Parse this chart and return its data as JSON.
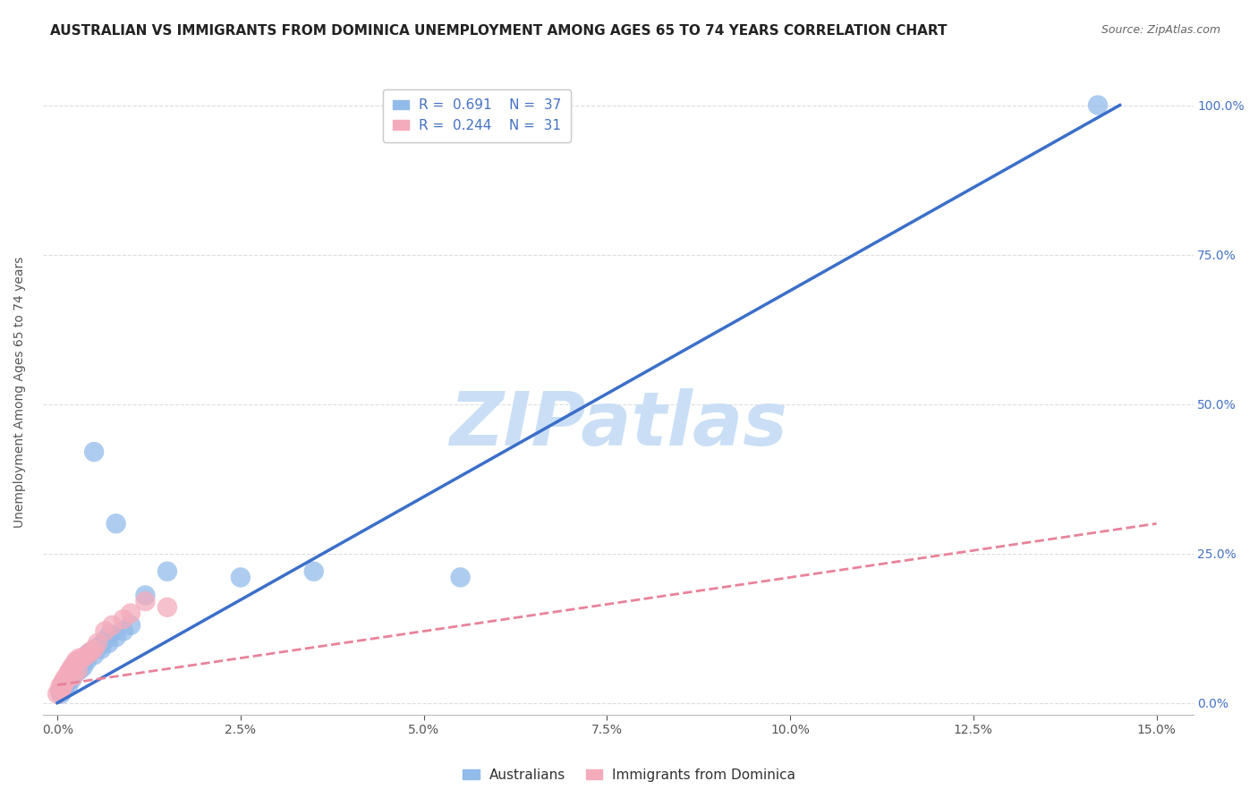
{
  "title": "AUSTRALIAN VS IMMIGRANTS FROM DOMINICA UNEMPLOYMENT AMONG AGES 65 TO 74 YEARS CORRELATION CHART",
  "source": "Source: ZipAtlas.com",
  "xlabel_ticks": [
    "0.0%",
    "2.5%",
    "5.0%",
    "7.5%",
    "10.0%",
    "12.5%",
    "15.0%"
  ],
  "xlabel_vals": [
    0.0,
    2.5,
    5.0,
    7.5,
    10.0,
    12.5,
    15.0
  ],
  "ylabel_ticks": [
    "0.0%",
    "25.0%",
    "50.0%",
    "75.0%",
    "100.0%"
  ],
  "ylabel_vals": [
    0.0,
    25.0,
    50.0,
    75.0,
    100.0
  ],
  "xlim": [
    -0.2,
    15.5
  ],
  "ylim": [
    -2,
    106
  ],
  "ylabel": "Unemployment Among Ages 65 to 74 years",
  "blue_R": 0.691,
  "blue_N": 37,
  "pink_R": 0.244,
  "pink_N": 31,
  "blue_color": "#92BBEA",
  "pink_color": "#F4ABBB",
  "trend_blue_color": "#3B6FC9",
  "trend_pink_color": "#E8839A",
  "watermark": "ZIPatlas",
  "blue_scatter_x": [
    0.5,
    0.8,
    0.1,
    0.15,
    0.2,
    0.25,
    0.05,
    0.1,
    0.3,
    0.35,
    0.4,
    0.5,
    0.6,
    0.7,
    0.8,
    0.9,
    1.0,
    0.05,
    0.12,
    0.18,
    0.22,
    0.28,
    0.45,
    0.65,
    0.08,
    0.13,
    0.17,
    0.32,
    0.42,
    0.58,
    0.72,
    1.2,
    1.5,
    2.5,
    3.5,
    5.5,
    14.2
  ],
  "blue_scatter_y": [
    42.0,
    30.0,
    2.5,
    3.0,
    4.0,
    5.0,
    2.0,
    3.5,
    5.5,
    6.0,
    7.0,
    8.0,
    9.0,
    10.0,
    11.0,
    12.0,
    13.0,
    1.5,
    3.2,
    4.5,
    5.2,
    6.5,
    8.5,
    10.5,
    2.2,
    3.8,
    4.8,
    6.8,
    8.2,
    9.5,
    11.5,
    18.0,
    22.0,
    21.0,
    22.0,
    21.0,
    100.0
  ],
  "pink_scatter_x": [
    0.0,
    0.03,
    0.06,
    0.08,
    0.1,
    0.12,
    0.15,
    0.18,
    0.2,
    0.22,
    0.25,
    0.28,
    0.3,
    0.4,
    0.5,
    0.65,
    0.9,
    1.2,
    0.04,
    0.07,
    0.11,
    0.16,
    0.21,
    0.26,
    0.35,
    0.45,
    0.55,
    0.75,
    1.0,
    1.5,
    0.09
  ],
  "pink_scatter_y": [
    1.5,
    2.0,
    2.5,
    3.0,
    3.5,
    4.0,
    5.0,
    5.5,
    6.0,
    4.5,
    7.0,
    5.5,
    7.5,
    8.0,
    9.0,
    12.0,
    14.0,
    17.0,
    2.8,
    3.2,
    4.2,
    5.2,
    6.0,
    6.8,
    7.5,
    8.5,
    10.0,
    13.0,
    15.0,
    16.0,
    3.8
  ],
  "blue_line_x": [
    0.0,
    14.5
  ],
  "blue_line_y": [
    0.0,
    100.0
  ],
  "pink_line_x": [
    0.0,
    15.0
  ],
  "pink_line_y": [
    3.0,
    30.0
  ],
  "legend_bottom1": "Australians",
  "legend_bottom2": "Immigrants from Dominica",
  "title_fontsize": 11,
  "axis_label_fontsize": 10,
  "tick_fontsize": 10,
  "legend_fontsize": 11,
  "watermark_color": "#CADFF5",
  "background_color": "#FFFFFF",
  "grid_color": "#DDDDDD",
  "rn_text_color": "#4472C4",
  "tick_color": "#4472C4",
  "ylabel_color": "#555555",
  "spine_color": "#BBBBBB"
}
